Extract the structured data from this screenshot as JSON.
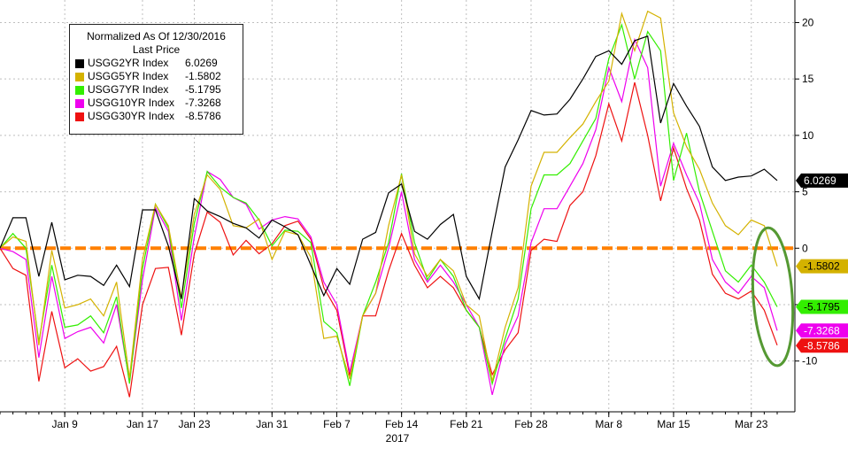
{
  "chart_data": {
    "type": "line",
    "legend": {
      "title_line1": "Normalized As Of 12/30/2016",
      "title_line2": "Last Price",
      "placement": "top-left"
    },
    "x_tick_labels": [
      "Jan 9",
      "Jan 17",
      "Jan 23",
      "Jan 31",
      "Feb 7",
      "Feb 14",
      "Feb 21",
      "Feb 28",
      "Mar 8",
      "Mar 15",
      "Mar 23"
    ],
    "x_year_label": "2017",
    "y_ticks": [
      -10,
      -5,
      0,
      5,
      10,
      15,
      20
    ],
    "ylim": [
      -14.5,
      22
    ],
    "grid": true,
    "x": [
      "Jan 2",
      "Jan 3",
      "Jan 4",
      "Jan 5",
      "Jan 6",
      "Jan 9",
      "Jan 10",
      "Jan 11",
      "Jan 12",
      "Jan 13",
      "Jan 16",
      "Jan 17",
      "Jan 18",
      "Jan 19",
      "Jan 20",
      "Jan 23",
      "Jan 24",
      "Jan 25",
      "Jan 26",
      "Jan 27",
      "Jan 30",
      "Jan 31",
      "Feb 1",
      "Feb 2",
      "Feb 3",
      "Feb 6",
      "Feb 7",
      "Feb 8",
      "Feb 9",
      "Feb 10",
      "Feb 13",
      "Feb 14",
      "Feb 15",
      "Feb 16",
      "Feb 17",
      "Feb 20",
      "Feb 21",
      "Feb 22",
      "Feb 23",
      "Feb 24",
      "Feb 27",
      "Feb 28",
      "Mar 1",
      "Mar 2",
      "Mar 3",
      "Mar 6",
      "Mar 7",
      "Mar 8",
      "Mar 9",
      "Mar 10",
      "Mar 13",
      "Mar 14",
      "Mar 15",
      "Mar 16",
      "Mar 17",
      "Mar 20",
      "Mar 21",
      "Mar 22",
      "Mar 23",
      "Mar 24",
      "Mar 27"
    ],
    "series": [
      {
        "name": "USGG2YR Index",
        "last": "6.0269",
        "color": "#000000",
        "values": [
          0,
          2.7,
          2.7,
          -2.5,
          2.3,
          -2.8,
          -2.4,
          -2.5,
          -3.3,
          -1.5,
          -3.4,
          3.4,
          3.4,
          0.2,
          -4.5,
          4.4,
          3.3,
          2.8,
          2.2,
          1.8,
          0.9,
          2.5,
          1.9,
          1.2,
          -1.5,
          -4.2,
          -1.8,
          -3.2,
          0.8,
          1.4,
          4.9,
          5.7,
          1.5,
          0.8,
          2.1,
          3.0,
          -2.5,
          -4.5,
          1.5,
          7.2,
          9.6,
          12.2,
          11.8,
          11.9,
          13.2,
          15.0,
          17.0,
          17.5,
          16.3,
          18.4,
          18.8,
          11.1,
          14.6,
          12.6,
          10.8,
          7.2,
          6.0,
          6.3,
          6.4,
          7.0,
          6.0
        ]
      },
      {
        "name": "USGG5YR Index",
        "last": "-1.5802",
        "color": "#d4b200",
        "values": [
          0,
          1.0,
          0.6,
          -8.6,
          -0.2,
          -5.3,
          -5.0,
          -4.5,
          -6.0,
          -3.0,
          -11.5,
          -1.0,
          3.9,
          2.0,
          -4.4,
          3.0,
          6.5,
          5.2,
          2.0,
          1.8,
          2.6,
          -1.0,
          1.5,
          1.2,
          -0.8,
          -8.0,
          -7.8,
          -11.6,
          -6.0,
          -4.0,
          2.0,
          6.5,
          -0.5,
          -2.5,
          -1.0,
          -2.0,
          -5.0,
          -6.0,
          -11.8,
          -7.0,
          -3.5,
          5.5,
          8.5,
          8.5,
          9.8,
          11.0,
          13.0,
          14.8,
          20.8,
          17.5,
          21.0,
          20.4,
          12.0,
          9.0,
          7.0,
          4.0,
          2.0,
          1.2,
          2.5,
          2.0,
          -1.6
        ]
      },
      {
        "name": "USGG7YR Index",
        "last": "-5.1795",
        "color": "#33ee00",
        "values": [
          0,
          1.3,
          0.0,
          -8.3,
          -1.5,
          -7.0,
          -6.8,
          -6.0,
          -7.5,
          -4.3,
          -12.0,
          -1.8,
          3.9,
          1.8,
          -5.3,
          2.2,
          6.8,
          5.4,
          4.5,
          4.0,
          2.5,
          0.2,
          1.6,
          1.5,
          0.5,
          -6.5,
          -7.5,
          -12.2,
          -6.0,
          -3.0,
          0.5,
          6.6,
          0.5,
          -2.8,
          -1.0,
          -2.5,
          -5.5,
          -7.0,
          -12.0,
          -8.0,
          -4.5,
          3.5,
          6.5,
          6.5,
          7.5,
          9.5,
          11.5,
          16.8,
          19.8,
          15.0,
          19.2,
          17.5,
          6.0,
          10.2,
          5.0,
          1.5,
          -2.0,
          -3.0,
          -1.5,
          -3.0,
          -5.2
        ]
      },
      {
        "name": "USGG10YR Index",
        "last": "-7.3268",
        "color": "#ee00ee",
        "values": [
          0,
          -0.3,
          -1.0,
          -9.7,
          -2.5,
          -8.0,
          -7.4,
          -7.0,
          -8.4,
          -5.0,
          -11.8,
          -2.8,
          3.6,
          1.5,
          -6.4,
          1.0,
          6.8,
          6.1,
          4.5,
          3.9,
          1.7,
          2.5,
          2.8,
          2.6,
          1.0,
          -3.0,
          -5.0,
          -11.0,
          -6.0,
          -4.0,
          0,
          5.0,
          -1.0,
          -3.0,
          -1.5,
          -3.0,
          -5.0,
          -7.0,
          -13.0,
          -8.5,
          -6.0,
          0.5,
          3.5,
          3.5,
          5.5,
          7.5,
          10.5,
          16.0,
          13.0,
          18.5,
          16.0,
          5.5,
          9.3,
          6.5,
          4.0,
          -1.0,
          -3.0,
          -4.0,
          -2.5,
          -3.5,
          -7.3
        ]
      },
      {
        "name": "USGG30YR Index",
        "last": "-8.5786",
        "color": "#ee1111",
        "values": [
          0,
          -1.8,
          -2.4,
          -11.8,
          -5.6,
          -10.6,
          -9.8,
          -10.9,
          -10.5,
          -8.7,
          -13.2,
          -5.0,
          -1.8,
          -1.7,
          -7.7,
          -0.5,
          3.2,
          2.3,
          -0.6,
          0.7,
          -0.5,
          0.4,
          2.0,
          2.4,
          0.8,
          -3.5,
          -5.5,
          -11.3,
          -6.0,
          -6.0,
          -2.0,
          1.3,
          -1.5,
          -3.5,
          -2.5,
          -3.5,
          -5.5,
          -7.0,
          -11.2,
          -9.0,
          -7.5,
          -0.2,
          0.8,
          0.6,
          3.8,
          5.0,
          8.2,
          12.8,
          9.5,
          14.7,
          10.0,
          4.2,
          8.9,
          5.3,
          2.5,
          -2.3,
          -4.0,
          -4.5,
          -3.8,
          -5.5,
          -8.6
        ]
      }
    ],
    "zero_line_color": "#ff8000",
    "annotation_color": "#559933"
  }
}
